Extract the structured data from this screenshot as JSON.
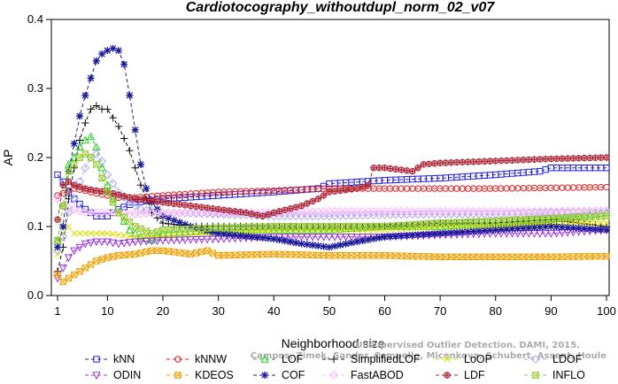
{
  "chart_data": {
    "type": "line",
    "title": "Cardiotocography_withoutdupl_norm_02_v07",
    "xlabel": "Neighborhood size",
    "ylabel": "AP",
    "xlim": [
      1,
      100
    ],
    "ylim": [
      0,
      0.4
    ],
    "xticks": [
      1,
      10,
      20,
      30,
      40,
      50,
      60,
      70,
      80,
      90,
      100
    ],
    "yticks": [
      0.0,
      0.1,
      0.2,
      0.3,
      0.4
    ],
    "legend_position": "bottom",
    "credit": [
      "Unsupervised Outlier Detection. DAMI, 2015.",
      "Campos, Zimek, Sander, Campello, Micenkova, Schubert, Assent, Houle"
    ],
    "series": [
      {
        "name": "kNN",
        "color": "#1f1fdd",
        "marker": "square",
        "dash": "4,3",
        "points": [
          [
            1,
            0.175
          ],
          [
            2,
            0.165
          ],
          [
            3,
            0.15
          ],
          [
            4,
            0.14
          ],
          [
            6,
            0.125
          ],
          [
            8,
            0.115
          ],
          [
            10,
            0.115
          ],
          [
            12,
            0.125
          ],
          [
            15,
            0.135
          ],
          [
            20,
            0.14
          ],
          [
            30,
            0.145
          ],
          [
            40,
            0.15
          ],
          [
            48,
            0.155
          ],
          [
            50,
            0.162
          ],
          [
            60,
            0.167
          ],
          [
            70,
            0.17
          ],
          [
            80,
            0.175
          ],
          [
            88,
            0.18
          ],
          [
            90,
            0.185
          ],
          [
            100,
            0.185
          ]
        ]
      },
      {
        "name": "kNNW",
        "color": "#dd2222",
        "marker": "circle",
        "dash": "4,3",
        "points": [
          [
            1,
            0.145
          ],
          [
            2,
            0.148
          ],
          [
            3,
            0.152
          ],
          [
            4,
            0.155
          ],
          [
            6,
            0.152
          ],
          [
            8,
            0.148
          ],
          [
            10,
            0.145
          ],
          [
            12,
            0.142
          ],
          [
            15,
            0.142
          ],
          [
            20,
            0.145
          ],
          [
            30,
            0.15
          ],
          [
            40,
            0.152
          ],
          [
            50,
            0.155
          ],
          [
            60,
            0.155
          ],
          [
            70,
            0.155
          ],
          [
            80,
            0.155
          ],
          [
            90,
            0.156
          ],
          [
            100,
            0.157
          ]
        ]
      },
      {
        "name": "LOF",
        "color": "#22cc22",
        "marker": "triangle",
        "dash": "4,3",
        "points": [
          [
            1,
            0.08
          ],
          [
            2,
            0.13
          ],
          [
            3,
            0.19
          ],
          [
            4,
            0.2
          ],
          [
            5,
            0.215
          ],
          [
            6,
            0.225
          ],
          [
            7,
            0.23
          ],
          [
            8,
            0.215
          ],
          [
            9,
            0.185
          ],
          [
            10,
            0.16
          ],
          [
            12,
            0.12
          ],
          [
            14,
            0.095
          ],
          [
            16,
            0.085
          ],
          [
            18,
            0.08
          ],
          [
            20,
            0.09
          ],
          [
            30,
            0.095
          ],
          [
            40,
            0.095
          ],
          [
            50,
            0.095
          ],
          [
            60,
            0.1
          ],
          [
            70,
            0.1
          ],
          [
            80,
            0.105
          ],
          [
            90,
            0.11
          ],
          [
            100,
            0.12
          ]
        ]
      },
      {
        "name": "SimplifiedLOF",
        "color": "#111111",
        "marker": "plus",
        "dash": "4,3",
        "points": [
          [
            1,
            0.035
          ],
          [
            2,
            0.07
          ],
          [
            3,
            0.14
          ],
          [
            4,
            0.185
          ],
          [
            5,
            0.225
          ],
          [
            6,
            0.25
          ],
          [
            7,
            0.27
          ],
          [
            8,
            0.275
          ],
          [
            9,
            0.27
          ],
          [
            10,
            0.27
          ],
          [
            12,
            0.245
          ],
          [
            14,
            0.21
          ],
          [
            16,
            0.16
          ],
          [
            18,
            0.12
          ],
          [
            20,
            0.105
          ],
          [
            25,
            0.1
          ],
          [
            30,
            0.1
          ],
          [
            40,
            0.1
          ],
          [
            50,
            0.1
          ],
          [
            60,
            0.1
          ],
          [
            70,
            0.105
          ],
          [
            80,
            0.105
          ],
          [
            90,
            0.11
          ],
          [
            100,
            0.1
          ]
        ]
      },
      {
        "name": "LoOP",
        "color": "#dddd00",
        "marker": "x",
        "dash": "4,3",
        "points": [
          [
            1,
            0.06
          ],
          [
            2,
            0.09
          ],
          [
            3,
            0.1
          ],
          [
            4,
            0.09
          ],
          [
            6,
            0.09
          ],
          [
            8,
            0.09
          ],
          [
            10,
            0.09
          ],
          [
            15,
            0.085
          ],
          [
            20,
            0.085
          ],
          [
            30,
            0.09
          ],
          [
            40,
            0.095
          ],
          [
            50,
            0.095
          ],
          [
            60,
            0.095
          ],
          [
            70,
            0.1
          ],
          [
            80,
            0.1
          ],
          [
            90,
            0.105
          ],
          [
            100,
            0.105
          ]
        ]
      },
      {
        "name": "LDOF",
        "color": "#aaaaee",
        "marker": "diamond",
        "dash": "4,3",
        "points": [
          [
            1,
            0.065
          ],
          [
            2,
            0.085
          ],
          [
            3,
            0.12
          ],
          [
            4,
            0.14
          ],
          [
            5,
            0.165
          ],
          [
            6,
            0.185
          ],
          [
            7,
            0.2
          ],
          [
            8,
            0.205
          ],
          [
            9,
            0.195
          ],
          [
            10,
            0.175
          ],
          [
            12,
            0.15
          ],
          [
            14,
            0.135
          ],
          [
            16,
            0.125
          ],
          [
            20,
            0.12
          ],
          [
            30,
            0.118
          ],
          [
            40,
            0.115
          ],
          [
            50,
            0.115
          ],
          [
            60,
            0.117
          ],
          [
            70,
            0.118
          ],
          [
            80,
            0.118
          ],
          [
            90,
            0.12
          ],
          [
            100,
            0.12
          ]
        ]
      },
      {
        "name": "ODIN",
        "color": "#9933dd",
        "marker": "triangle-down",
        "dash": "4,3",
        "points": [
          [
            1,
            0.025
          ],
          [
            2,
            0.04
          ],
          [
            3,
            0.055
          ],
          [
            4,
            0.065
          ],
          [
            6,
            0.075
          ],
          [
            8,
            0.078
          ],
          [
            10,
            0.078
          ],
          [
            12,
            0.075
          ],
          [
            15,
            0.078
          ],
          [
            20,
            0.08
          ],
          [
            30,
            0.082
          ],
          [
            40,
            0.085
          ],
          [
            50,
            0.085
          ],
          [
            60,
            0.085
          ],
          [
            70,
            0.088
          ],
          [
            80,
            0.09
          ],
          [
            90,
            0.09
          ],
          [
            100,
            0.095
          ]
        ]
      },
      {
        "name": "KDEOS",
        "color": "#f0a000",
        "marker": "square-x",
        "dash": "4,3",
        "points": [
          [
            1,
            0.03
          ],
          [
            2,
            0.02
          ],
          [
            3,
            0.025
          ],
          [
            4,
            0.03
          ],
          [
            6,
            0.04
          ],
          [
            8,
            0.05
          ],
          [
            10,
            0.055
          ],
          [
            12,
            0.058
          ],
          [
            15,
            0.06
          ],
          [
            18,
            0.065
          ],
          [
            20,
            0.065
          ],
          [
            25,
            0.06
          ],
          [
            28,
            0.065
          ],
          [
            30,
            0.058
          ],
          [
            40,
            0.06
          ],
          [
            50,
            0.058
          ],
          [
            60,
            0.058
          ],
          [
            70,
            0.056
          ],
          [
            80,
            0.056
          ],
          [
            90,
            0.056
          ],
          [
            100,
            0.057
          ]
        ]
      },
      {
        "name": "COF",
        "color": "#1a1a99",
        "marker": "asterisk",
        "dash": "4,3",
        "points": [
          [
            1,
            0.07
          ],
          [
            2,
            0.1
          ],
          [
            3,
            0.18
          ],
          [
            4,
            0.22
          ],
          [
            5,
            0.26
          ],
          [
            6,
            0.29
          ],
          [
            7,
            0.315
          ],
          [
            8,
            0.34
          ],
          [
            9,
            0.35
          ],
          [
            10,
            0.355
          ],
          [
            11,
            0.358
          ],
          [
            12,
            0.355
          ],
          [
            13,
            0.335
          ],
          [
            14,
            0.29
          ],
          [
            15,
            0.24
          ],
          [
            16,
            0.19
          ],
          [
            17,
            0.155
          ],
          [
            18,
            0.135
          ],
          [
            20,
            0.115
          ],
          [
            25,
            0.1
          ],
          [
            30,
            0.09
          ],
          [
            40,
            0.082
          ],
          [
            45,
            0.075
          ],
          [
            50,
            0.07
          ],
          [
            55,
            0.078
          ],
          [
            60,
            0.085
          ],
          [
            70,
            0.09
          ],
          [
            80,
            0.095
          ],
          [
            90,
            0.1
          ],
          [
            100,
            0.095
          ]
        ]
      },
      {
        "name": "FastABOD",
        "color": "#ffb0ff",
        "marker": "diamond",
        "dash": "4,3",
        "points": [
          [
            1,
            0.14
          ],
          [
            2,
            0.13
          ],
          [
            4,
            0.125
          ],
          [
            6,
            0.12
          ],
          [
            8,
            0.12
          ],
          [
            10,
            0.12
          ],
          [
            15,
            0.118
          ],
          [
            20,
            0.12
          ],
          [
            30,
            0.12
          ],
          [
            40,
            0.12
          ],
          [
            50,
            0.122
          ],
          [
            60,
            0.122
          ],
          [
            70,
            0.122
          ],
          [
            80,
            0.122
          ],
          [
            90,
            0.122
          ],
          [
            100,
            0.123
          ]
        ]
      },
      {
        "name": "LDF",
        "color": "#aa2233",
        "marker": "circle-plus",
        "dash": "4,3",
        "points": [
          [
            1,
            0.11
          ],
          [
            2,
            0.16
          ],
          [
            3,
            0.165
          ],
          [
            4,
            0.16
          ],
          [
            6,
            0.155
          ],
          [
            8,
            0.152
          ],
          [
            10,
            0.15
          ],
          [
            15,
            0.14
          ],
          [
            20,
            0.135
          ],
          [
            25,
            0.13
          ],
          [
            30,
            0.125
          ],
          [
            35,
            0.12
          ],
          [
            38,
            0.115
          ],
          [
            40,
            0.12
          ],
          [
            45,
            0.13
          ],
          [
            48,
            0.14
          ],
          [
            50,
            0.15
          ],
          [
            55,
            0.155
          ],
          [
            57,
            0.16
          ],
          [
            58,
            0.185
          ],
          [
            60,
            0.185
          ],
          [
            65,
            0.18
          ],
          [
            67,
            0.19
          ],
          [
            70,
            0.192
          ],
          [
            80,
            0.195
          ],
          [
            90,
            0.198
          ],
          [
            100,
            0.2
          ]
        ]
      },
      {
        "name": "INFLO",
        "color": "#99cc33",
        "marker": "hourglass",
        "dash": "4,3",
        "points": [
          [
            1,
            0.08
          ],
          [
            2,
            0.13
          ],
          [
            3,
            0.18
          ],
          [
            4,
            0.19
          ],
          [
            5,
            0.2
          ],
          [
            6,
            0.205
          ],
          [
            7,
            0.2
          ],
          [
            8,
            0.19
          ],
          [
            9,
            0.17
          ],
          [
            10,
            0.15
          ],
          [
            12,
            0.12
          ],
          [
            15,
            0.1
          ],
          [
            18,
            0.09
          ],
          [
            20,
            0.095
          ],
          [
            30,
            0.098
          ],
          [
            40,
            0.1
          ],
          [
            50,
            0.1
          ],
          [
            60,
            0.1
          ],
          [
            70,
            0.105
          ],
          [
            80,
            0.108
          ],
          [
            90,
            0.112
          ],
          [
            100,
            0.115
          ]
        ]
      }
    ]
  }
}
